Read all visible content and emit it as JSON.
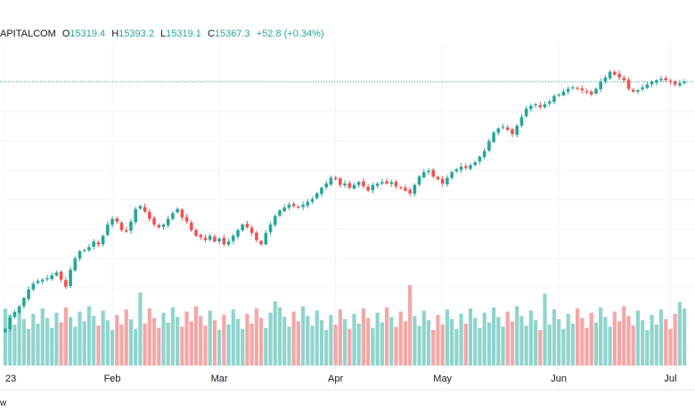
{
  "legend": {
    "source": "APITALCOM",
    "open_label": "O",
    "open": "15319.4",
    "high_label": "H",
    "high": "15393.2",
    "low_label": "L",
    "low": "15319.1",
    "close_label": "C",
    "close": "15367.3",
    "change": "+52.8 (+0.34%)"
  },
  "footer": {
    "brand_fragment": "w"
  },
  "colors": {
    "up": "#26a69a",
    "down": "#ef5350",
    "up_volume": "#8fd4cc",
    "down_volume": "#f4a7a5",
    "grid": "#f0f3fa",
    "last_price_line": "#26a69a"
  },
  "chart_data": {
    "type": "candlestick",
    "x_tick_labels": [
      "23",
      "Feb",
      "Mar",
      "Apr",
      "May",
      "Jun",
      "Jul"
    ],
    "x_tick_index": [
      0,
      23,
      46,
      71,
      94,
      119,
      143
    ],
    "ylim": [
      14200,
      16250
    ],
    "volume_ylim": [
      0,
      1
    ],
    "last_price": 16050,
    "close": [
      14300,
      14380,
      14420,
      14460,
      14520,
      14580,
      14620,
      14640,
      14650,
      14660,
      14680,
      14700,
      14650,
      14600,
      14720,
      14800,
      14850,
      14860,
      14880,
      14920,
      14900,
      14960,
      15040,
      15080,
      15060,
      15000,
      14990,
      15060,
      15150,
      15170,
      15130,
      15080,
      15040,
      15020,
      15040,
      15080,
      15120,
      15150,
      15090,
      15060,
      15000,
      14960,
      14950,
      14930,
      14960,
      14920,
      14940,
      14900,
      14920,
      14960,
      15000,
      15040,
      15020,
      14980,
      14930,
      14900,
      14980,
      15040,
      15100,
      15140,
      15160,
      15180,
      15170,
      15160,
      15180,
      15200,
      15220,
      15260,
      15300,
      15330,
      15370,
      15360,
      15320,
      15330,
      15300,
      15320,
      15340,
      15310,
      15280,
      15320,
      15330,
      15340,
      15330,
      15340,
      15310,
      15300,
      15280,
      15260,
      15320,
      15380,
      15410,
      15420,
      15380,
      15360,
      15330,
      15370,
      15410,
      15430,
      15450,
      15440,
      15460,
      15480,
      15520,
      15560,
      15630,
      15690,
      15720,
      15730,
      15710,
      15680,
      15740,
      15800,
      15860,
      15880,
      15890,
      15870,
      15890,
      15910,
      15950,
      15960,
      15980,
      16000,
      16010,
      16000,
      15990,
      15980,
      15960,
      16000,
      16050,
      16080,
      16120,
      16100,
      16080,
      16060,
      16000,
      15980,
      15990,
      16010,
      16030,
      16050,
      16060,
      16070,
      16060,
      16050,
      16030,
      16040,
      16050
    ]
  }
}
